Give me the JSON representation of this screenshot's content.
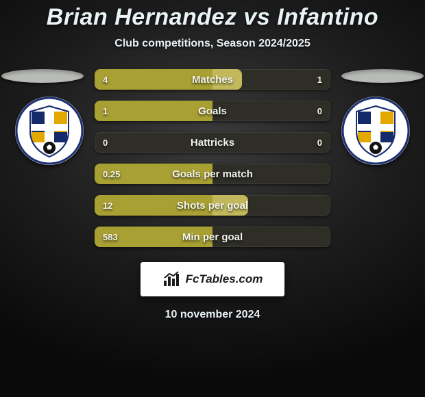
{
  "colors": {
    "bar_track": "#2e2e26",
    "bar_fill_primary": "#a8a033",
    "bar_fill_secondary": "#c1b95b",
    "title": "#e9f2f5",
    "text": "#f2f2ec",
    "pill": "#b9bbb8",
    "brand_bg": "#ffffff",
    "brand_text": "#1b1b1b"
  },
  "title": "Brian Hernandez vs Infantino",
  "subtitle": "Club competitions, Season 2024/2025",
  "date": "10 november 2024",
  "brand": "FcTables.com",
  "crest": {
    "pill_bg": "#ffffff",
    "stripe_navy": "#152a6a",
    "stripe_gold": "#e4a900",
    "ring": "#1b2f73",
    "ball": "#111111"
  },
  "rows": [
    {
      "label": "Matches",
      "left_val": "4",
      "right_val": "1",
      "left_pct": 100,
      "right_pct": 25
    },
    {
      "label": "Goals",
      "left_val": "1",
      "right_val": "0",
      "left_pct": 100,
      "right_pct": 0
    },
    {
      "label": "Hattricks",
      "left_val": "0",
      "right_val": "0",
      "left_pct": 0,
      "right_pct": 0
    },
    {
      "label": "Goals per match",
      "left_val": "0.25",
      "right_val": "",
      "left_pct": 100,
      "right_pct": 0
    },
    {
      "label": "Shots per goal",
      "left_val": "12",
      "right_val": "",
      "left_pct": 100,
      "right_pct": 30
    },
    {
      "label": "Min per goal",
      "left_val": "583",
      "right_val": "",
      "left_pct": 100,
      "right_pct": 0
    }
  ]
}
